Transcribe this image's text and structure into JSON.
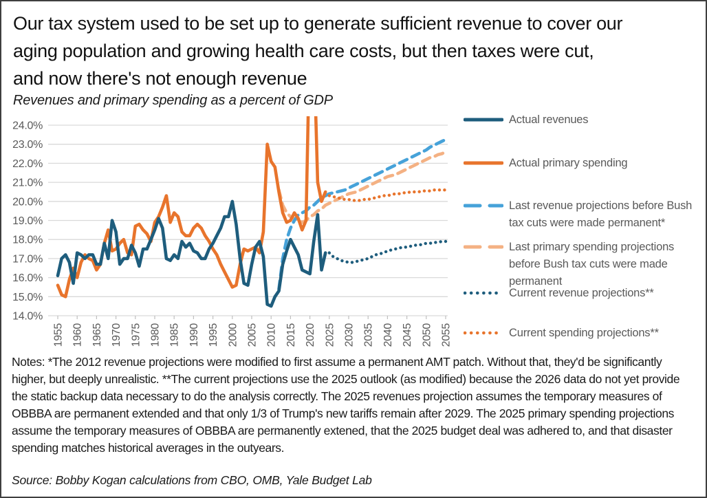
{
  "header": {
    "title_lines": [
      "Our tax system used to be set up to generate sufficient revenue to cover our",
      "aging population and growing health care costs, but then taxes were cut,",
      "and now there's not enough revenue"
    ],
    "subtitle": "Revenues and primary spending as a percent of GDP"
  },
  "chart_data": {
    "type": "line",
    "title": "Revenues and primary spending as a percent of GDP",
    "xlabel": "",
    "ylabel": "percent of GDP",
    "x_range": [
      1955,
      2055
    ],
    "y_range": [
      14,
      24
    ],
    "grid": "horizontal",
    "legend_position": "right",
    "y_tick_labels": [
      "24.0%",
      "23.0%",
      "22.0%",
      "21.0%",
      "20.0%",
      "19.0%",
      "18.0%",
      "17.0%",
      "16.0%",
      "15.0%",
      "14.0%"
    ],
    "x_tick_labels": [
      "1955",
      "1960",
      "1965",
      "1970",
      "1975",
      "1980",
      "1985",
      "1990",
      "1995",
      "2000",
      "2005",
      "2010",
      "2015",
      "2020",
      "2025",
      "2030",
      "2035",
      "2040",
      "2045",
      "2050",
      "2055"
    ],
    "clipped_above_axis_max": "Actual primary spending exceeds 24% in 2020-2021 and is clipped at the plot top",
    "series": [
      {
        "name": "actual-revenues",
        "label": "Actual revenues",
        "color": "#1E5D7D",
        "style": "solid",
        "x_start": 1955,
        "values": [
          16.1,
          17.0,
          17.2,
          16.8,
          15.7,
          17.3,
          17.2,
          17.0,
          17.2,
          17.2,
          16.7,
          16.7,
          17.8,
          17.0,
          19.0,
          18.4,
          16.7,
          17.0,
          17.0,
          17.7,
          17.3,
          16.6,
          17.5,
          17.5,
          18.0,
          18.5,
          19.1,
          18.6,
          17.0,
          16.9,
          17.2,
          17.0,
          17.9,
          17.6,
          17.8,
          17.4,
          17.3,
          17.0,
          17.0,
          17.5,
          17.8,
          18.2,
          18.6,
          19.2,
          19.2,
          20.0,
          18.8,
          17.0,
          15.7,
          15.6,
          16.7,
          17.6,
          17.9,
          17.1,
          14.6,
          14.5,
          15.0,
          15.3,
          16.7,
          17.4,
          18.0,
          17.6,
          17.2,
          16.4,
          16.3,
          16.2,
          17.9,
          19.3,
          16.4,
          17.3
        ]
      },
      {
        "name": "actual-primary-spending",
        "label": "Actual primary spending",
        "color": "#E8742C",
        "style": "solid",
        "x_start": 1955,
        "values": [
          15.6,
          15.1,
          15.0,
          15.9,
          16.5,
          16.0,
          16.8,
          17.2,
          17.0,
          16.9,
          16.4,
          16.7,
          17.8,
          18.5,
          17.4,
          17.5,
          17.8,
          18.0,
          17.3,
          17.2,
          18.7,
          18.8,
          18.5,
          18.3,
          17.9,
          18.9,
          19.2,
          19.7,
          20.3,
          18.9,
          19.4,
          19.2,
          18.4,
          18.2,
          18.2,
          18.6,
          18.8,
          18.6,
          18.2,
          17.9,
          17.5,
          17.2,
          16.7,
          16.3,
          15.9,
          15.5,
          15.6,
          16.7,
          17.5,
          17.4,
          17.5,
          17.6,
          17.3,
          18.4,
          23.0,
          22.1,
          21.8,
          20.5,
          19.4,
          18.9,
          19.0,
          19.4,
          19.1,
          18.5,
          19.0,
          29.0,
          28.3,
          21.0,
          20.0,
          20.5
        ]
      },
      {
        "name": "revenue-projection-2012",
        "label": "Last revenue projections before Bush tax cuts were made permanent*",
        "color": "#46A2D9",
        "style": "dashed",
        "x_start": 2012,
        "values": [
          15.4,
          17.0,
          18.0,
          18.6,
          19.0,
          19.3,
          19.4,
          19.5,
          19.7,
          19.8,
          20.0,
          20.2,
          20.3,
          20.4,
          20.45,
          20.5,
          20.55,
          20.6,
          20.7,
          20.8,
          20.9,
          21.0,
          21.1,
          21.2,
          21.3,
          21.4,
          21.5,
          21.6,
          21.7,
          21.8,
          21.9,
          22.0,
          22.1,
          22.2,
          22.3,
          22.4,
          22.5,
          22.6,
          22.7,
          22.85,
          22.95,
          23.05,
          23.15,
          23.25
        ]
      },
      {
        "name": "spending-projection-2012",
        "label": "Last primary spending projections before Bush tax cuts were made permanent",
        "color": "#F4B183",
        "style": "dashed",
        "x_start": 2012,
        "values": [
          20.6,
          19.8,
          19.4,
          19.2,
          19.1,
          19.0,
          18.9,
          19.0,
          19.2,
          19.3,
          19.5,
          19.6,
          19.8,
          19.9,
          20.0,
          20.1,
          20.2,
          20.3,
          20.4,
          20.45,
          20.5,
          20.6,
          20.7,
          20.8,
          20.9,
          21.0,
          21.1,
          21.2,
          21.3,
          21.35,
          21.4,
          21.5,
          21.6,
          21.7,
          21.8,
          21.9,
          22.0,
          22.1,
          22.2,
          22.3,
          22.35,
          22.45,
          22.5,
          22.6
        ]
      },
      {
        "name": "current-revenue-projection",
        "label": "Current revenue projections**",
        "color": "#1E5D7D",
        "style": "dotted",
        "x_start": 2025,
        "values": [
          17.3,
          17.1,
          17.0,
          16.9,
          16.85,
          16.8,
          16.8,
          16.85,
          16.9,
          16.95,
          17.0,
          17.1,
          17.2,
          17.25,
          17.3,
          17.4,
          17.45,
          17.5,
          17.55,
          17.6,
          17.6,
          17.65,
          17.7,
          17.7,
          17.75,
          17.8,
          17.8,
          17.85,
          17.85,
          17.9,
          17.9
        ]
      },
      {
        "name": "current-spending-projection",
        "label": "Current spending projections**",
        "color": "#E8742C",
        "style": "dotted",
        "x_start": 2025,
        "values": [
          20.3,
          20.25,
          20.2,
          20.15,
          20.1,
          20.1,
          20.05,
          20.05,
          20.05,
          20.1,
          20.1,
          20.15,
          20.2,
          20.25,
          20.3,
          20.3,
          20.35,
          20.4,
          20.4,
          20.45,
          20.45,
          20.5,
          20.5,
          20.5,
          20.55,
          20.55,
          20.55,
          20.6,
          20.6,
          20.6,
          20.6
        ]
      }
    ]
  },
  "notes": "Notes: *The 2012 revenue projections were modified to first assume a permanent AMT patch. Without that, they'd be significantly higher, but deeply unrealistic.  **The current projections use the 2025 outlook (as modified) because the 2026 data do not yet provide the static backup data necessary to do the analysis correctly.  The 2025 revenues projection assumes the temporary measures of OBBBA are permanent extended and that only 1/3 of Trump's new tariffs remain after 2029. The 2025 primary spending projections assume the temporary measures of OBBBA are permanently extened, that the 2025 budget deal was adhered to, and that disaster spending matches historical averages in the outyears.",
  "source": "Source: Bobby Kogan calculations from CBO, OMB, Yale Budget Lab"
}
